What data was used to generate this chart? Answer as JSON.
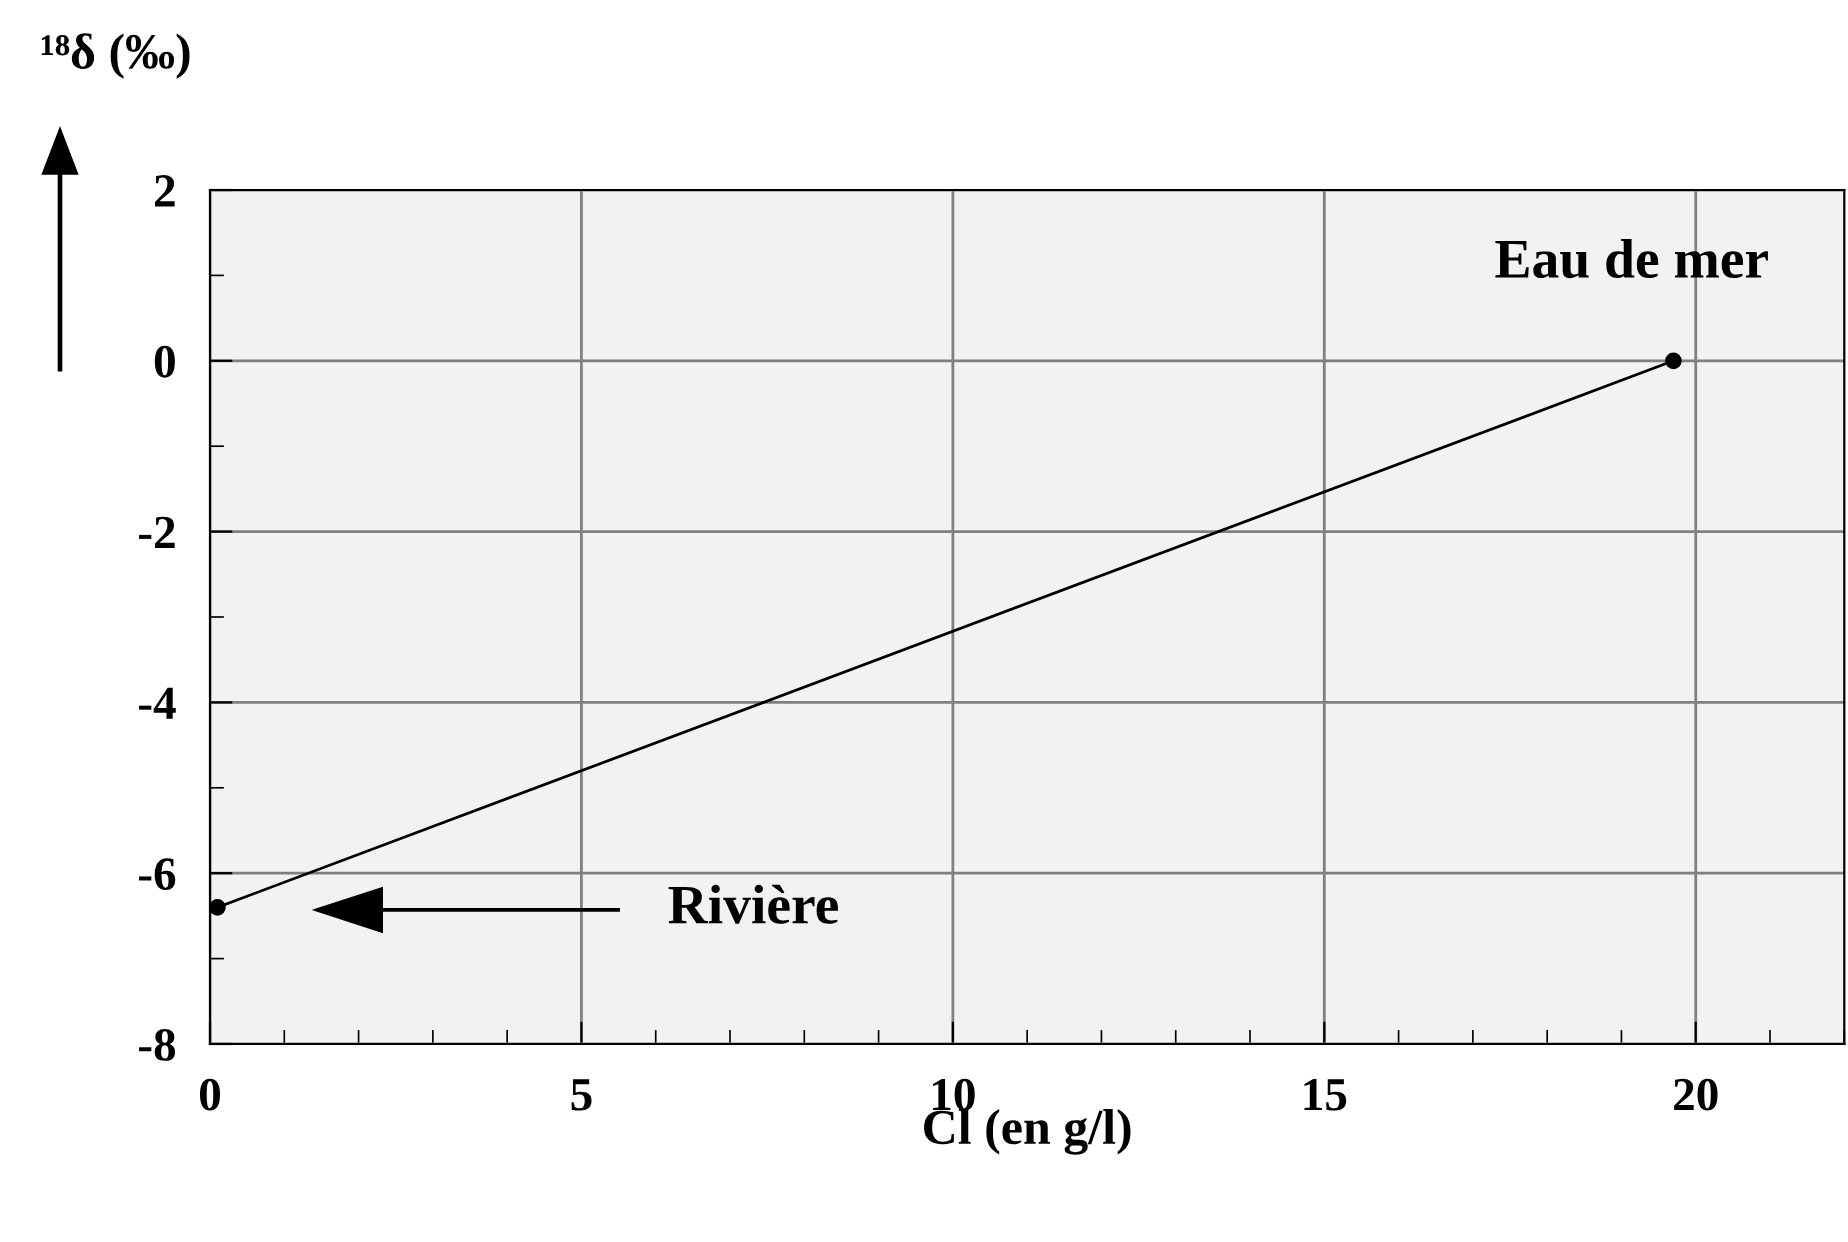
{
  "chart_data": {
    "type": "line",
    "xlabel": "Cl (en g/l)",
    "ylabel": "¹⁸δ (‰)",
    "x": [
      0.1,
      19.7
    ],
    "series": [
      {
        "color": "#000000",
        "values": [
          -6.4,
          0
        ]
      }
    ],
    "marker": "circle",
    "line_style": "solid",
    "grid": true,
    "xlim": [
      0,
      22
    ],
    "xticks": [
      0,
      5,
      10,
      15,
      20
    ],
    "ylim": [
      -8,
      2
    ],
    "yticks": [
      2,
      0,
      -2,
      -4,
      -6,
      -8
    ],
    "annotations": [
      {
        "text": "Eau de mer",
        "x": 19.7,
        "y": 0
      },
      "Rivière"
    ]
  }
}
